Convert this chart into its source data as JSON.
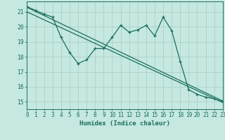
{
  "title": "",
  "xlabel": "Humidex (Indice chaleur)",
  "bg_color": "#c5e8e0",
  "line_color": "#1a6e60",
  "xlim": [
    0,
    23
  ],
  "ylim": [
    14.5,
    21.7
  ],
  "xticks": [
    0,
    1,
    2,
    3,
    4,
    5,
    6,
    7,
    8,
    9,
    10,
    11,
    12,
    13,
    14,
    15,
    16,
    17,
    18,
    19,
    20,
    21,
    22,
    23
  ],
  "yticks": [
    15,
    16,
    17,
    18,
    19,
    20,
    21
  ],
  "zigzag_x": [
    0,
    1,
    2,
    3,
    4,
    5,
    6,
    7,
    8,
    9,
    10,
    11,
    12,
    13,
    14,
    15,
    16,
    17,
    18,
    19,
    20,
    21,
    22,
    23
  ],
  "zigzag_y": [
    21.35,
    21.1,
    20.85,
    20.65,
    19.3,
    18.3,
    17.55,
    17.8,
    18.55,
    18.55,
    19.3,
    20.1,
    19.65,
    19.8,
    20.1,
    19.4,
    20.65,
    19.75,
    17.7,
    15.8,
    15.5,
    15.3,
    15.2,
    15.0
  ],
  "line1_x": [
    0,
    23
  ],
  "line1_y": [
    21.3,
    15.05
  ],
  "line2_x": [
    0,
    23
  ],
  "line2_y": [
    21.0,
    14.95
  ],
  "grid_color": "#a8ccc4",
  "xlabel_fontsize": 6.5,
  "tick_fontsize": 5.5
}
